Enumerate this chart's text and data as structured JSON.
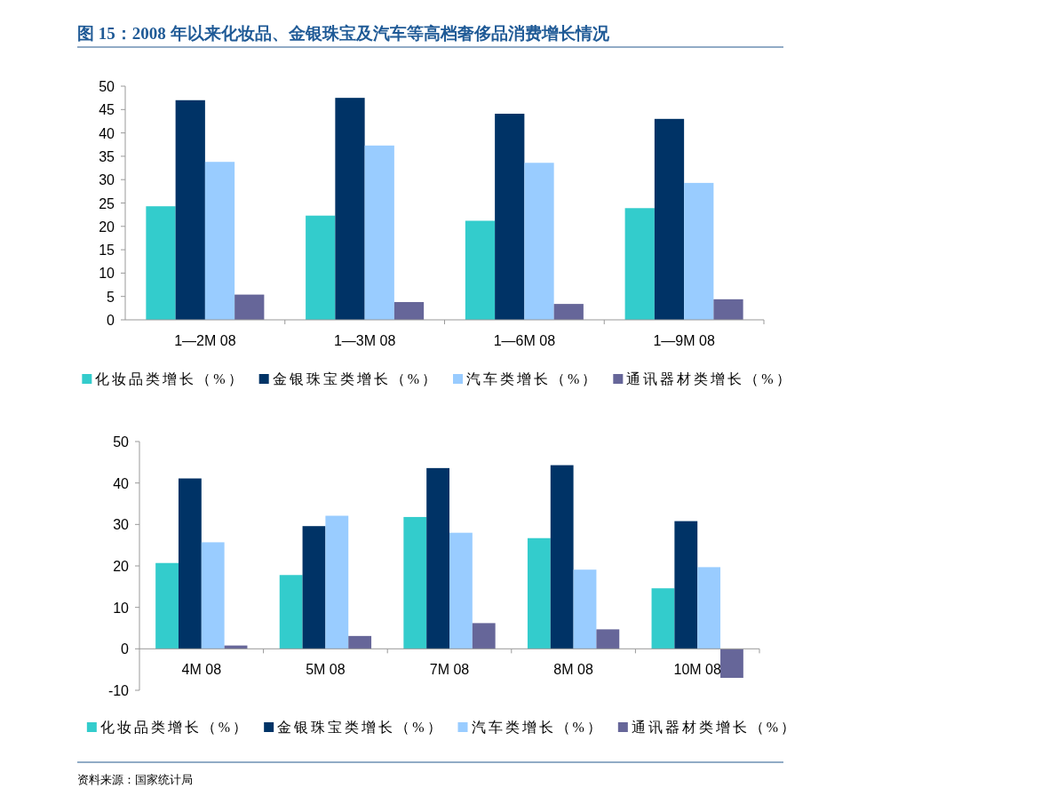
{
  "chart_data": [
    {
      "type": "bar",
      "title": "图 15：2008 年以来化妆品、金银珠宝及汽车等高档奢侈品消费增长情况",
      "categories": [
        "1—2M 08",
        "1—3M 08",
        "1—6M 08",
        "1—9M 08"
      ],
      "series": [
        {
          "name": "化妆品类增长（%）",
          "color": "#33cccc",
          "values": [
            24.3,
            22.3,
            21.2,
            23.9
          ]
        },
        {
          "name": "金银珠宝类增长（%）",
          "color": "#003366",
          "values": [
            47.0,
            47.5,
            44.1,
            43.0
          ]
        },
        {
          "name": "汽车类增长（%）",
          "color": "#99ccff",
          "values": [
            33.8,
            37.3,
            33.6,
            29.3
          ]
        },
        {
          "name": "通讯器材类增长（%）",
          "color": "#666699",
          "values": [
            5.4,
            3.8,
            3.4,
            4.4
          ]
        }
      ],
      "ylim": [
        0,
        50
      ],
      "yticks": [
        0,
        5,
        10,
        15,
        20,
        25,
        30,
        35,
        40,
        45,
        50
      ],
      "grid": false,
      "legend": "bottom"
    },
    {
      "type": "bar",
      "categories": [
        "4M 08",
        "5M 08",
        "7M 08",
        "8M 08",
        "10M 08"
      ],
      "series": [
        {
          "name": "化妆品类增长（%）",
          "color": "#33cccc",
          "values": [
            20.7,
            17.8,
            31.8,
            26.7,
            14.6
          ]
        },
        {
          "name": "金银珠宝类增长（%）",
          "color": "#003366",
          "values": [
            41.1,
            29.6,
            43.6,
            44.3,
            30.8
          ]
        },
        {
          "name": "汽车类增长（%）",
          "color": "#99ccff",
          "values": [
            25.7,
            32.1,
            28.0,
            19.1,
            19.7
          ]
        },
        {
          "name": "通讯器材类增长（%）",
          "color": "#666699",
          "values": [
            0.8,
            3.1,
            6.2,
            4.7,
            -7.0
          ]
        }
      ],
      "ylim": [
        -10,
        50
      ],
      "yticks": [
        -10,
        0,
        10,
        20,
        30,
        40,
        50
      ],
      "grid": false,
      "legend": "bottom",
      "annotations": [
        "资料来源：国家统计局"
      ]
    }
  ]
}
